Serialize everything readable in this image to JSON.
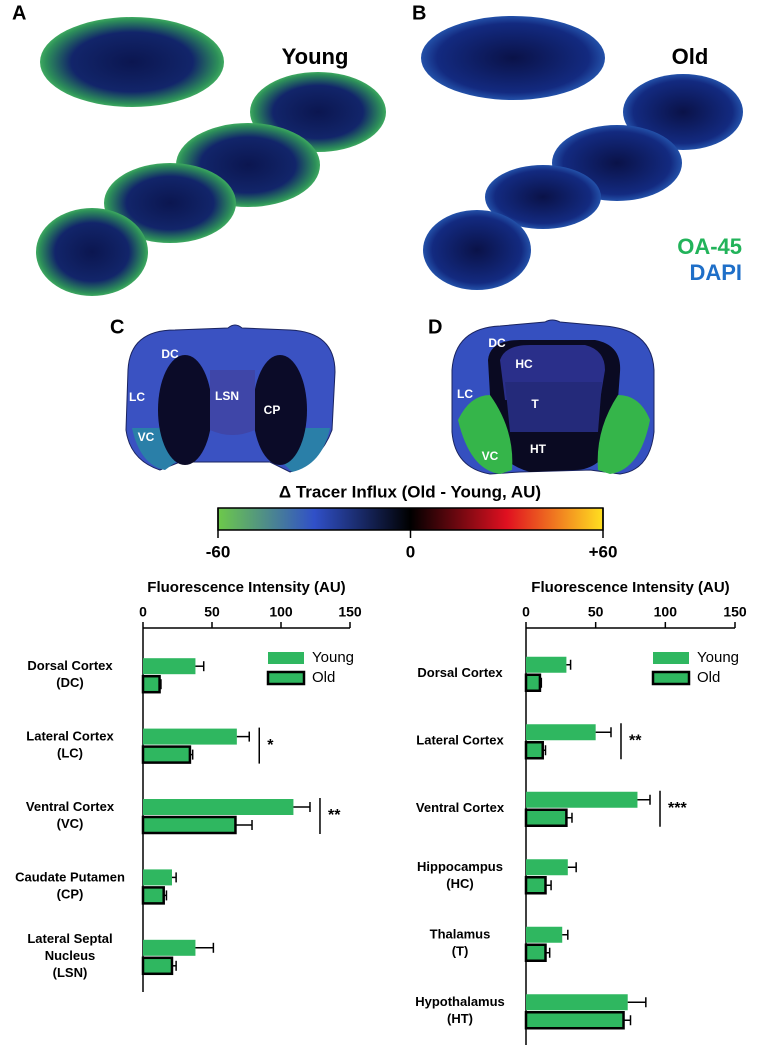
{
  "panels": {
    "a": {
      "letter": "A",
      "label": "Young"
    },
    "b": {
      "letter": "B",
      "label": "Old",
      "stain1": "OA-45",
      "stain2": "DAPI"
    },
    "c": {
      "letter": "C",
      "regions": [
        "DC",
        "LC",
        "LSN",
        "CP",
        "VC"
      ]
    },
    "d": {
      "letter": "D",
      "regions": [
        "DC",
        "HC",
        "LC",
        "T",
        "HT",
        "VC"
      ]
    }
  },
  "colorbar": {
    "title": "Δ Tracer Influx (Old - Young, AU)",
    "lim": [
      -60,
      60
    ],
    "ticks": [
      {
        "value": -60,
        "label": "-60"
      },
      0,
      {
        "value": 60,
        "label": "+60"
      }
    ],
    "colors": [
      "#6dc94a",
      "#3050c8",
      "#000000",
      "#e01020",
      "#ffe020"
    ]
  },
  "chart_data": [
    {
      "type": "bar",
      "orientation": "horizontal",
      "xlabel": "Fluorescence Intensity (AU)",
      "categories": [
        [
          "Dorsal Cortex",
          "(DC)"
        ],
        [
          "Lateral Cortex",
          "(LC)"
        ],
        [
          "Ventral Cortex",
          "(VC)"
        ],
        [
          "Caudate Putamen",
          "(CP)"
        ],
        [
          "Lateral Septal",
          "Nucleus",
          "(LSN)"
        ]
      ],
      "series": [
        {
          "name": "Young",
          "color": "#2fb760",
          "values": [
            38,
            68,
            109,
            21,
            38
          ],
          "errors": [
            6,
            9,
            12,
            3,
            13
          ]
        },
        {
          "name": "Old",
          "color": "#2fb760",
          "edgecolor": "#000000",
          "values": [
            12,
            34,
            67,
            15,
            21
          ],
          "errors": [
            1,
            2,
            12,
            2,
            3
          ]
        }
      ],
      "significance": [
        null,
        "*",
        "**",
        null,
        null
      ],
      "xlim": [
        0,
        150
      ],
      "xticks": [
        0,
        50,
        100,
        150
      ],
      "legend": "upper right"
    },
    {
      "type": "bar",
      "orientation": "horizontal",
      "xlabel": "Fluorescence Intensity (AU)",
      "categories": [
        [
          "Dorsal Cortex"
        ],
        [
          "Lateral Cortex"
        ],
        [
          "Ventral Cortex"
        ],
        [
          "Hippocampus",
          "(HC)"
        ],
        [
          "Thalamus",
          "(T)"
        ],
        [
          "Hypothalamus",
          "(HT)"
        ]
      ],
      "series": [
        {
          "name": "Young",
          "color": "#2fb760",
          "values": [
            29,
            50,
            80,
            30,
            26,
            73
          ],
          "errors": [
            3,
            11,
            9,
            6,
            4,
            13
          ]
        },
        {
          "name": "Old",
          "color": "#2fb760",
          "edgecolor": "#000000",
          "values": [
            10,
            12,
            29,
            14,
            14,
            70
          ],
          "errors": [
            1,
            2,
            4,
            4,
            3,
            5
          ]
        }
      ],
      "significance": [
        null,
        "**",
        "***",
        null,
        null,
        null
      ],
      "xlim": [
        0,
        150
      ],
      "xticks": [
        0,
        50,
        100,
        150
      ],
      "legend": "upper right"
    }
  ]
}
